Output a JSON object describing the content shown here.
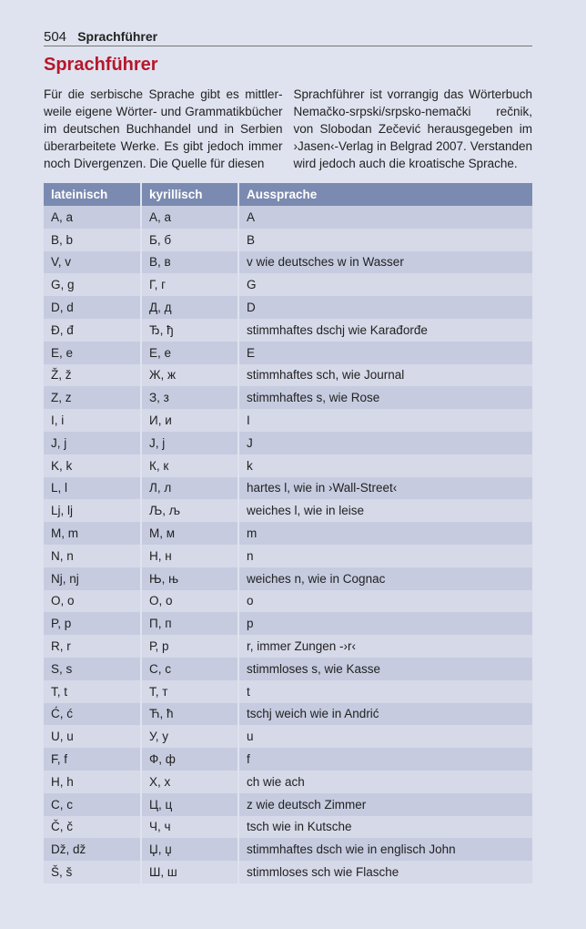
{
  "header": {
    "page_number": "504",
    "section": "Sprachführer"
  },
  "title": "Sprachführer",
  "intro": {
    "col1": "Für die serbische Sprache gibt es mittler­weile eigene Wörter- und Grammatikbücher im deutschen Buchhandel und in Serbien überarbeitete Werke. Es gibt jedoch immer noch Divergenzen. Die Quelle für diesen",
    "col2": "Sprachführer ist vorrangig das Wörterbuch Nemačko-srpski/srpsko-nemački rečnik, von Slobodan Zečević herausgegeben im ›Jasen‹-Verlag in Belgrad 2007. Verstanden wird jedoch auch die kroatische Sprache."
  },
  "table": {
    "headers": [
      "lateinisch",
      "kyrillisch",
      "Aussprache"
    ],
    "rows": [
      [
        "A, a",
        "А, а",
        "A"
      ],
      [
        "B, b",
        "Б, б",
        "B"
      ],
      [
        "V, v",
        "В, в",
        "v wie deutsches w in Wasser"
      ],
      [
        "G, g",
        "Г, г",
        "G"
      ],
      [
        "D, d",
        "Д, д",
        "D"
      ],
      [
        "Đ, đ",
        "Ђ, ђ",
        "stimmhaftes dschj wie Karađorđe"
      ],
      [
        "E, e",
        "Е, е",
        "E"
      ],
      [
        "Ž, ž",
        "Ж, ж",
        "stimmhaftes sch, wie Journal"
      ],
      [
        "Z, z",
        "З, з",
        "stimmhaftes s, wie Rose"
      ],
      [
        "I, i",
        "И, и",
        "I"
      ],
      [
        "J, j",
        "Ј, ј",
        "J"
      ],
      [
        "K, k",
        "К, к",
        "k"
      ],
      [
        "L, l",
        "Л, л",
        "hartes l, wie in ›Wall-Street‹"
      ],
      [
        "Lj, lj",
        "Љ, љ",
        "weiches l, wie in leise"
      ],
      [
        "M, m",
        "М, м",
        "m"
      ],
      [
        "N, n",
        "Н, н",
        "n"
      ],
      [
        "Nj, nj",
        "Њ, њ",
        "weiches n, wie in Cognac"
      ],
      [
        "O, o",
        "О, о",
        "o"
      ],
      [
        "P, p",
        "П, п",
        "p"
      ],
      [
        "R, r",
        "Р, р",
        "r, immer Zungen -›r‹"
      ],
      [
        "S, s",
        "С, с",
        "stimmloses s, wie Kasse"
      ],
      [
        "T, t",
        "Т, т",
        "t"
      ],
      [
        "Ć, ć",
        "Ћ, ћ",
        "tschj weich wie in Andrić"
      ],
      [
        "U, u",
        "У, у",
        "u"
      ],
      [
        "F, f",
        "Ф, ф",
        "f"
      ],
      [
        "H, h",
        "Х, х",
        "ch wie ach"
      ],
      [
        "C, c",
        "Ц, ц",
        "z wie deutsch Zimmer"
      ],
      [
        "Č, č",
        "Ч, ч",
        "tsch wie in Kutsche"
      ],
      [
        "Dž, dž",
        "Џ, џ",
        "stimmhaftes dsch wie in englisch John"
      ],
      [
        "Š, š",
        "Ш, ш",
        "stimmloses sch wie Flasche"
      ]
    ]
  }
}
